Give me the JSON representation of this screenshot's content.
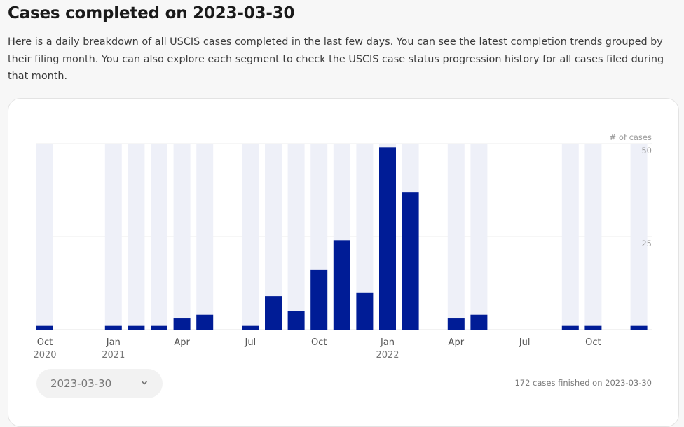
{
  "page": {
    "title": "Cases completed on 2023-03-30",
    "description": "Here is a daily breakdown of all USCIS cases completed in the last few days. You can see the latest completion trends grouped by their filing month. You can also explore each segment to check the USCIS case status progression history for all cases filed during that month."
  },
  "controls": {
    "selected_date": "2023-03-30",
    "chevron_icon": "chevron-down-icon",
    "summary_text": "172 cases finished on 2023-03-30"
  },
  "colors": {
    "bar": "#001c96",
    "background_bar": "#eef0f8",
    "grid": "#ececec"
  },
  "chart_data": {
    "type": "bar",
    "ylabel": "# of cases",
    "ylim": [
      0,
      50
    ],
    "yticks": [
      25,
      50
    ],
    "grid": true,
    "x_ticks": [
      {
        "month": "2020-10",
        "label": "Oct",
        "sublabel": "2020"
      },
      {
        "month": "2021-01",
        "label": "Jan",
        "sublabel": "2021"
      },
      {
        "month": "2021-04",
        "label": "Apr",
        "sublabel": ""
      },
      {
        "month": "2021-07",
        "label": "Jul",
        "sublabel": ""
      },
      {
        "month": "2021-10",
        "label": "Oct",
        "sublabel": ""
      },
      {
        "month": "2022-01",
        "label": "Jan",
        "sublabel": "2022"
      },
      {
        "month": "2022-04",
        "label": "Apr",
        "sublabel": ""
      },
      {
        "month": "2022-07",
        "label": "Jul",
        "sublabel": ""
      },
      {
        "month": "2022-10",
        "label": "Oct",
        "sublabel": ""
      }
    ],
    "bars": [
      {
        "month": "2020-10",
        "value": 1
      },
      {
        "month": "2021-01",
        "value": 1
      },
      {
        "month": "2021-02",
        "value": 1
      },
      {
        "month": "2021-03",
        "value": 1
      },
      {
        "month": "2021-04",
        "value": 3
      },
      {
        "month": "2021-05",
        "value": 4
      },
      {
        "month": "2021-07",
        "value": 1
      },
      {
        "month": "2021-08",
        "value": 9
      },
      {
        "month": "2021-09",
        "value": 5
      },
      {
        "month": "2021-10",
        "value": 16
      },
      {
        "month": "2021-11",
        "value": 24
      },
      {
        "month": "2021-12",
        "value": 10
      },
      {
        "month": "2022-01",
        "value": 49
      },
      {
        "month": "2022-02",
        "value": 37
      },
      {
        "month": "2022-04",
        "value": 3
      },
      {
        "month": "2022-05",
        "value": 4
      },
      {
        "month": "2022-09",
        "value": 1
      },
      {
        "month": "2022-10",
        "value": 1
      },
      {
        "month": "2022-12",
        "value": 1
      }
    ]
  }
}
